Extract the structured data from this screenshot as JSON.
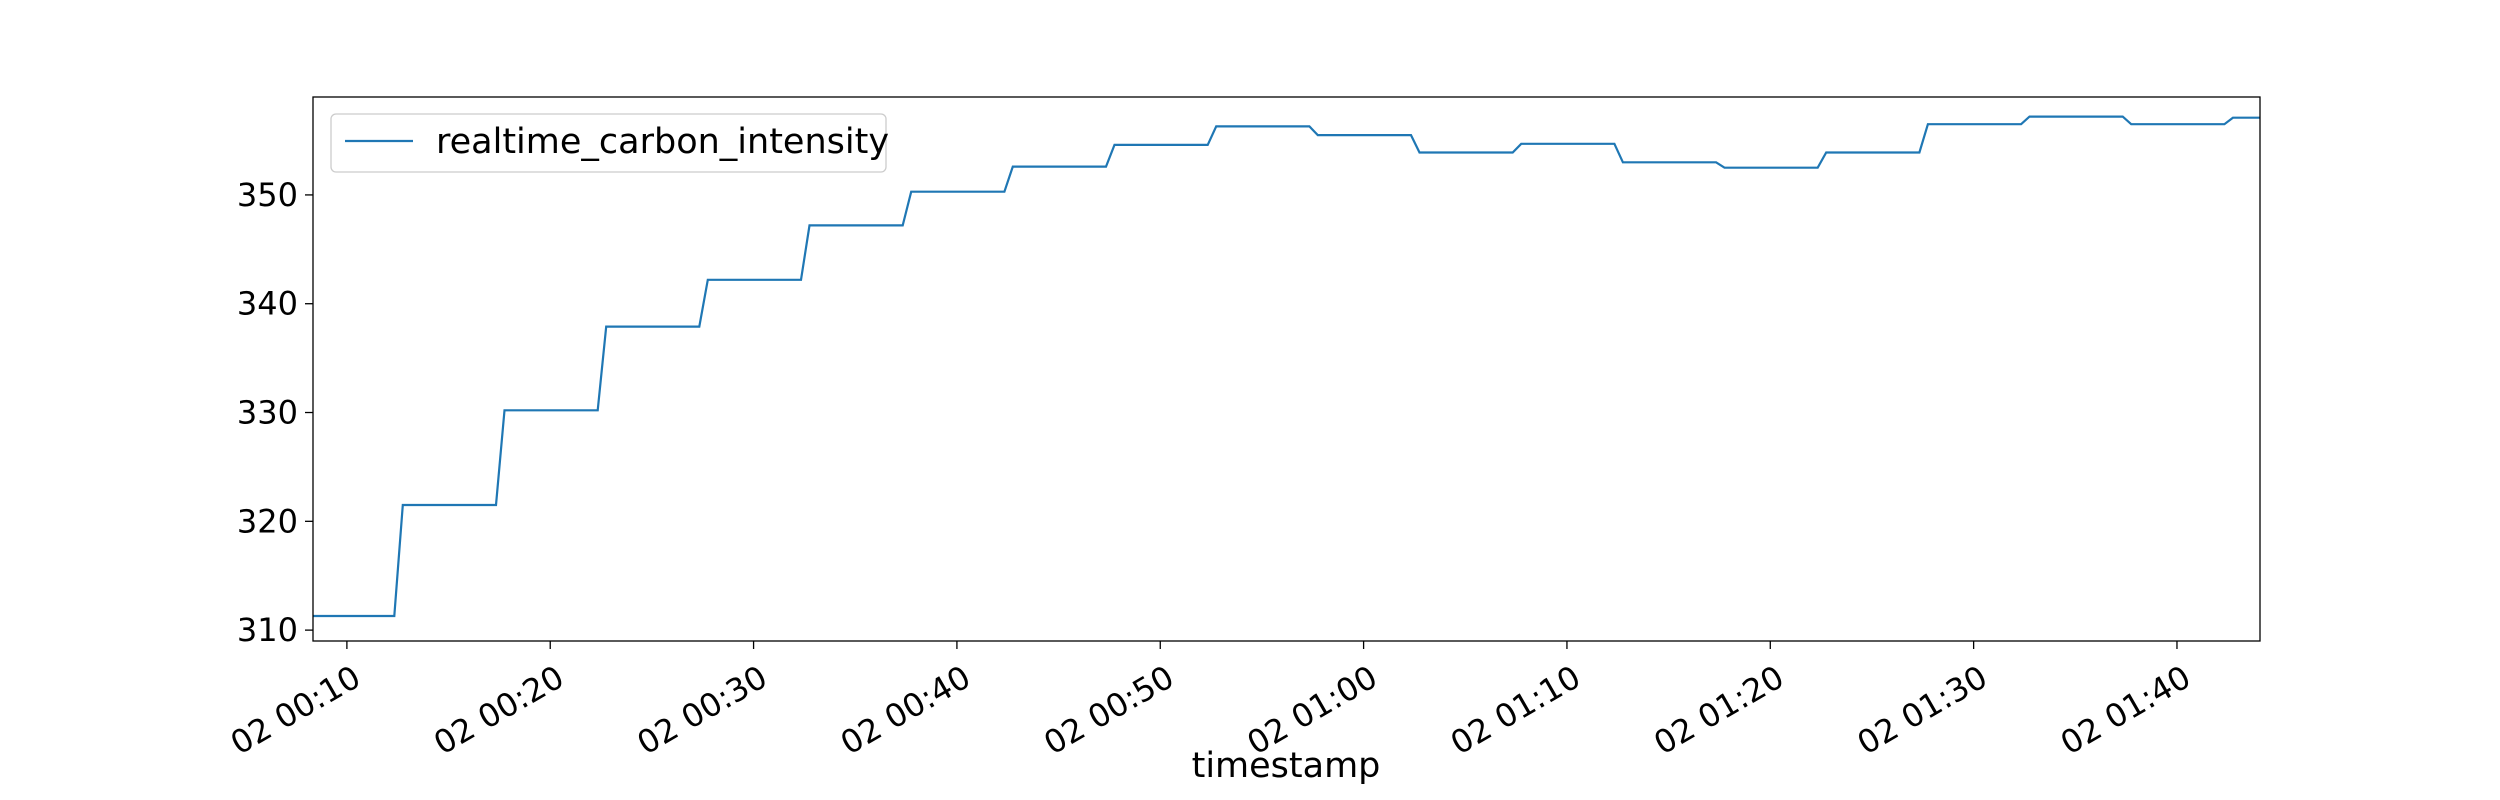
{
  "chart_data": {
    "type": "line",
    "title": "",
    "xlabel": "timestamp",
    "ylabel": "",
    "x_tick_labels": [
      "02 00:10",
      "02 00:20",
      "02 00:30",
      "02 00:40",
      "02 00:50",
      "02 01:00",
      "02 01:10",
      "02 01:20",
      "02 01:30",
      "02 01:40"
    ],
    "y_ticks": [
      310,
      320,
      330,
      340,
      350
    ],
    "ylim": [
      309,
      359
    ],
    "xlim": [
      "02 00:08:20",
      "02 01:44:05"
    ],
    "grid": false,
    "legend_position": "top-left",
    "line_style": "step",
    "series": [
      {
        "name": "realtime_carbon_intensity",
        "color": "#1f77b4",
        "x": [
          "02 00:08:20",
          "02 00:12:20",
          "02 00:17:20",
          "02 00:22:20",
          "02 00:27:20",
          "02 00:32:20",
          "02 00:37:20",
          "02 00:42:20",
          "02 00:47:20",
          "02 00:52:20",
          "02 00:57:20",
          "02 01:02:20",
          "02 01:07:20",
          "02 01:12:20",
          "02 01:17:20",
          "02 01:22:20",
          "02 01:27:20",
          "02 01:32:20",
          "02 01:37:20",
          "02 01:42:20",
          "02 01:44:05"
        ],
        "values": [
          311.3,
          321.5,
          330.2,
          337.9,
          342.2,
          347.2,
          350.3,
          352.6,
          354.6,
          356.3,
          355.5,
          353.9,
          354.7,
          353.0,
          352.5,
          353.9,
          356.5,
          357.2,
          356.5,
          357.1,
          357.1
        ]
      }
    ]
  }
}
